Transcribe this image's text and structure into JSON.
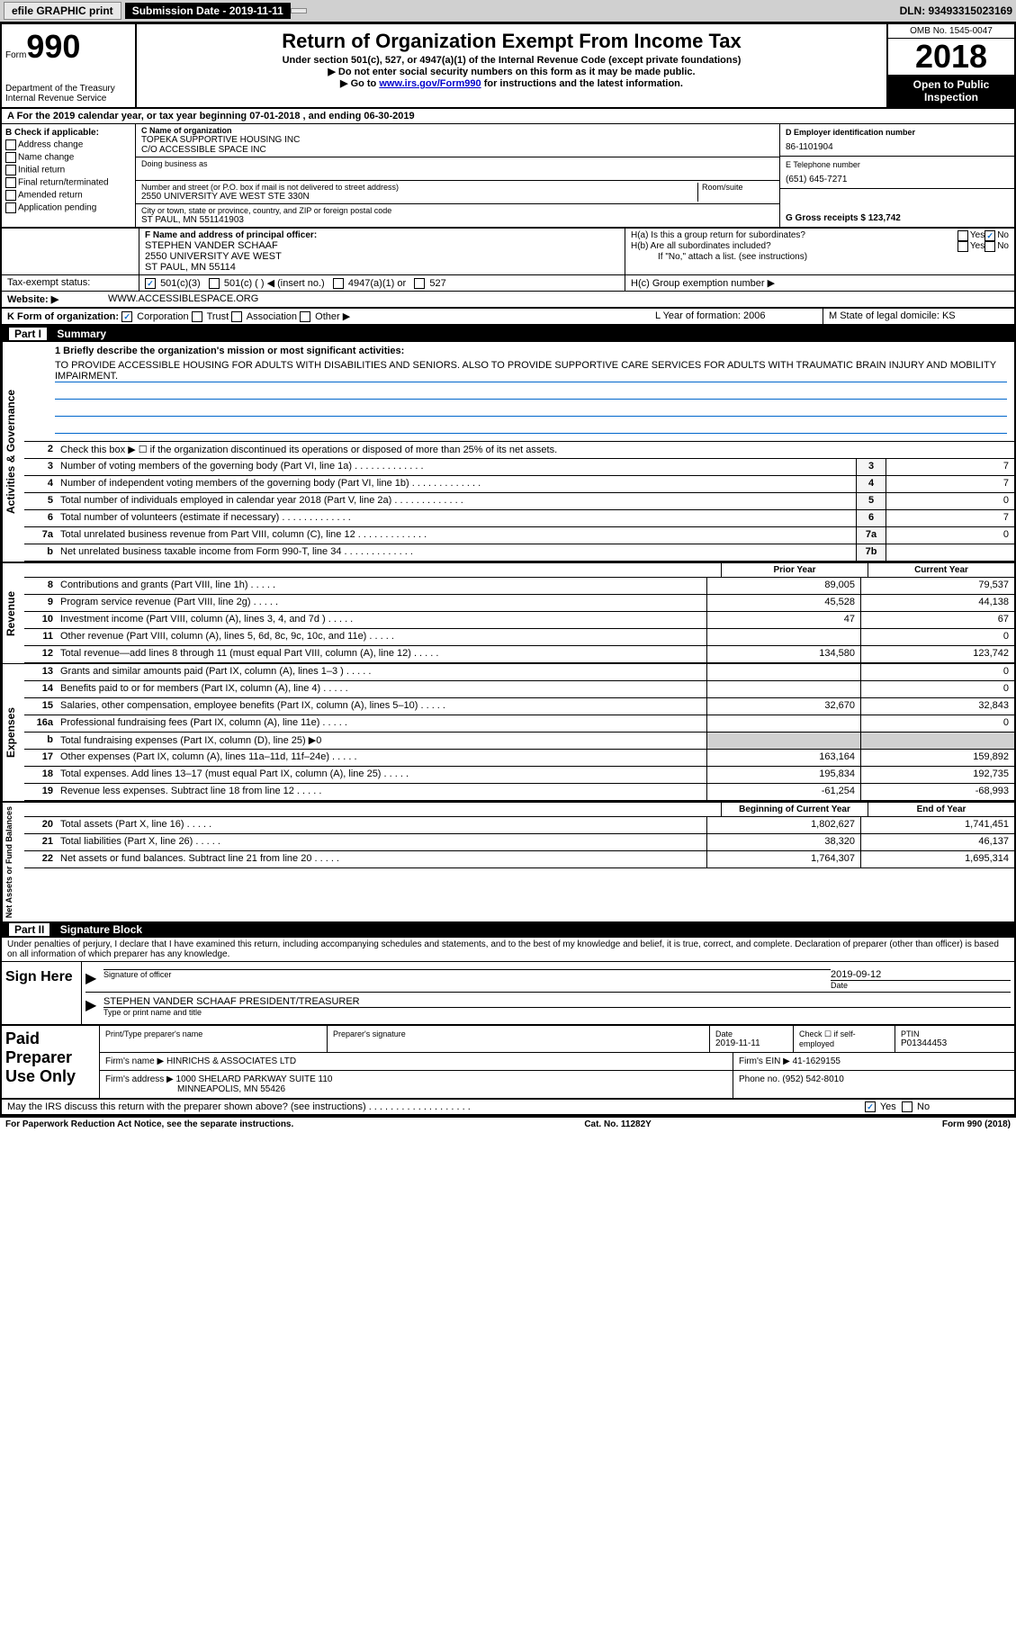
{
  "topbar": {
    "efile": "efile GRAPHIC print",
    "submission_label": "Submission Date - 2019-11-11",
    "dln": "DLN: 93493315023169"
  },
  "header": {
    "form_prefix": "Form",
    "form_number": "990",
    "dept": "Department of the Treasury\nInternal Revenue Service",
    "title": "Return of Organization Exempt From Income Tax",
    "subtitle": "Under section 501(c), 527, or 4947(a)(1) of the Internal Revenue Code (except private foundations)",
    "line1": "▶ Do not enter social security numbers on this form as it may be made public.",
    "line2_prefix": "▶ Go to ",
    "line2_link": "www.irs.gov/Form990",
    "line2_suffix": " for instructions and the latest information.",
    "omb": "OMB No. 1545-0047",
    "year": "2018",
    "inspection": "Open to Public Inspection"
  },
  "row_a": "A For the 2019 calendar year, or tax year beginning 07-01-2018   , and ending 06-30-2019",
  "section_b": {
    "heading": "B Check if applicable:",
    "items": [
      "Address change",
      "Name change",
      "Initial return",
      "Final return/terminated",
      "Amended return",
      "Application pending"
    ]
  },
  "section_c": {
    "name_label": "C Name of organization",
    "name": "TOPEKA SUPPORTIVE HOUSING INC",
    "care_of": "C/O ACCESSIBLE SPACE INC",
    "dba_label": "Doing business as",
    "addr_label": "Number and street (or P.O. box if mail is not delivered to street address)",
    "room_label": "Room/suite",
    "addr": "2550 UNIVERSITY AVE WEST STE 330N",
    "city_label": "City or town, state or province, country, and ZIP or foreign postal code",
    "city": "ST PAUL, MN  551141903"
  },
  "section_d": {
    "ein_label": "D Employer identification number",
    "ein": "86-1101904",
    "phone_label": "E Telephone number",
    "phone": "(651) 645-7271",
    "gross_label": "G Gross receipts $ 123,742"
  },
  "section_f": {
    "label": "F  Name and address of principal officer:",
    "name": "STEPHEN VANDER SCHAAF",
    "addr1": "2550 UNIVERSITY AVE WEST",
    "addr2": "ST PAUL, MN  55114"
  },
  "section_h": {
    "ha": "H(a)  Is this a group return for subordinates?",
    "hb": "H(b)  Are all subordinates included?",
    "hb_note": "If \"No,\" attach a list. (see instructions)",
    "hc": "H(c)  Group exemption number ▶",
    "yes": "Yes",
    "no": "No"
  },
  "tax_exempt": {
    "label": "Tax-exempt status:",
    "opt1": "501(c)(3)",
    "opt2": "501(c) (  ) ◀ (insert no.)",
    "opt3": "4947(a)(1) or",
    "opt4": "527"
  },
  "website": {
    "label": "Website: ▶",
    "value": "WWW.ACCESSIBLESPACE.ORG"
  },
  "row_k": {
    "label": "K Form of organization:",
    "corp": "Corporation",
    "trust": "Trust",
    "assoc": "Association",
    "other": "Other ▶",
    "l_label": "L Year of formation: 2006",
    "m_label": "M State of legal domicile: KS"
  },
  "part1": {
    "label": "Part I",
    "title": "Summary"
  },
  "mission": {
    "label": "1  Briefly describe the organization's mission or most significant activities:",
    "text": "TO PROVIDE ACCESSIBLE HOUSING FOR ADULTS WITH DISABILITIES AND SENIORS. ALSO TO PROVIDE SUPPORTIVE CARE SERVICES FOR ADULTS WITH TRAUMATIC BRAIN INJURY AND MOBILITY IMPAIRMENT."
  },
  "governance_label": "Activities & Governance",
  "revenue_label": "Revenue",
  "expenses_label": "Expenses",
  "netassets_label": "Net Assets or Fund Balances",
  "line2": {
    "desc": "Check this box ▶ ☐ if the organization discontinued its operations or disposed of more than 25% of its net assets."
  },
  "lines_gov": [
    {
      "num": "3",
      "desc": "Number of voting members of the governing body (Part VI, line 1a)",
      "box": "3",
      "val": "7"
    },
    {
      "num": "4",
      "desc": "Number of independent voting members of the governing body (Part VI, line 1b)",
      "box": "4",
      "val": "7"
    },
    {
      "num": "5",
      "desc": "Total number of individuals employed in calendar year 2018 (Part V, line 2a)",
      "box": "5",
      "val": "0"
    },
    {
      "num": "6",
      "desc": "Total number of volunteers (estimate if necessary)",
      "box": "6",
      "val": "7"
    },
    {
      "num": "7a",
      "desc": "Total unrelated business revenue from Part VIII, column (C), line 12",
      "box": "7a",
      "val": "0"
    },
    {
      "num": "b",
      "desc": "Net unrelated business taxable income from Form 990-T, line 34",
      "box": "7b",
      "val": ""
    }
  ],
  "col_headers": {
    "prior": "Prior Year",
    "current": "Current Year",
    "begin": "Beginning of Current Year",
    "end": "End of Year"
  },
  "lines_rev": [
    {
      "num": "8",
      "desc": "Contributions and grants (Part VIII, line 1h)",
      "prior": "89,005",
      "current": "79,537"
    },
    {
      "num": "9",
      "desc": "Program service revenue (Part VIII, line 2g)",
      "prior": "45,528",
      "current": "44,138"
    },
    {
      "num": "10",
      "desc": "Investment income (Part VIII, column (A), lines 3, 4, and 7d )",
      "prior": "47",
      "current": "67"
    },
    {
      "num": "11",
      "desc": "Other revenue (Part VIII, column (A), lines 5, 6d, 8c, 9c, 10c, and 11e)",
      "prior": "",
      "current": "0"
    },
    {
      "num": "12",
      "desc": "Total revenue—add lines 8 through 11 (must equal Part VIII, column (A), line 12)",
      "prior": "134,580",
      "current": "123,742"
    }
  ],
  "lines_exp": [
    {
      "num": "13",
      "desc": "Grants and similar amounts paid (Part IX, column (A), lines 1–3 )",
      "prior": "",
      "current": "0"
    },
    {
      "num": "14",
      "desc": "Benefits paid to or for members (Part IX, column (A), line 4)",
      "prior": "",
      "current": "0"
    },
    {
      "num": "15",
      "desc": "Salaries, other compensation, employee benefits (Part IX, column (A), lines 5–10)",
      "prior": "32,670",
      "current": "32,843"
    },
    {
      "num": "16a",
      "desc": "Professional fundraising fees (Part IX, column (A), line 11e)",
      "prior": "",
      "current": "0"
    },
    {
      "num": "b",
      "desc": "Total fundraising expenses (Part IX, column (D), line 25) ▶0",
      "prior": "SHADE",
      "current": "SHADE"
    },
    {
      "num": "17",
      "desc": "Other expenses (Part IX, column (A), lines 11a–11d, 11f–24e)",
      "prior": "163,164",
      "current": "159,892"
    },
    {
      "num": "18",
      "desc": "Total expenses. Add lines 13–17 (must equal Part IX, column (A), line 25)",
      "prior": "195,834",
      "current": "192,735"
    },
    {
      "num": "19",
      "desc": "Revenue less expenses. Subtract line 18 from line 12",
      "prior": "-61,254",
      "current": "-68,993"
    }
  ],
  "lines_net": [
    {
      "num": "20",
      "desc": "Total assets (Part X, line 16)",
      "prior": "1,802,627",
      "current": "1,741,451"
    },
    {
      "num": "21",
      "desc": "Total liabilities (Part X, line 26)",
      "prior": "38,320",
      "current": "46,137"
    },
    {
      "num": "22",
      "desc": "Net assets or fund balances. Subtract line 21 from line 20",
      "prior": "1,764,307",
      "current": "1,695,314"
    }
  ],
  "part2": {
    "label": "Part II",
    "title": "Signature Block"
  },
  "penalties": "Under penalties of perjury, I declare that I have examined this return, including accompanying schedules and statements, and to the best of my knowledge and belief, it is true, correct, and complete. Declaration of preparer (other than officer) is based on all information of which preparer has any knowledge.",
  "sign": {
    "label": "Sign Here",
    "sig_label": "Signature of officer",
    "date_label": "Date",
    "date": "2019-09-12",
    "name": "STEPHEN VANDER SCHAAF  PRESIDENT/TREASURER",
    "name_label": "Type or print name and title"
  },
  "preparer": {
    "label": "Paid Preparer Use Only",
    "name_label": "Print/Type preparer's name",
    "sig_label": "Preparer's signature",
    "date_label": "Date",
    "date": "2019-11-11",
    "check_label": "Check ☐ if self-employed",
    "ptin_label": "PTIN",
    "ptin": "P01344453",
    "firm_name_label": "Firm's name    ▶",
    "firm_name": "HINRICHS & ASSOCIATES LTD",
    "firm_ein_label": "Firm's EIN ▶",
    "firm_ein": "41-1629155",
    "firm_addr_label": "Firm's address ▶",
    "firm_addr1": "1000 SHELARD PARKWAY SUITE 110",
    "firm_addr2": "MINNEAPOLIS, MN  55426",
    "phone_label": "Phone no.",
    "phone": "(952) 542-8010"
  },
  "discuss": {
    "text": "May the IRS discuss this return with the preparer shown above? (see instructions)",
    "yes": "Yes",
    "no": "No"
  },
  "footer": {
    "left": "For Paperwork Reduction Act Notice, see the separate instructions.",
    "mid": "Cat. No. 11282Y",
    "right": "Form 990 (2018)"
  }
}
